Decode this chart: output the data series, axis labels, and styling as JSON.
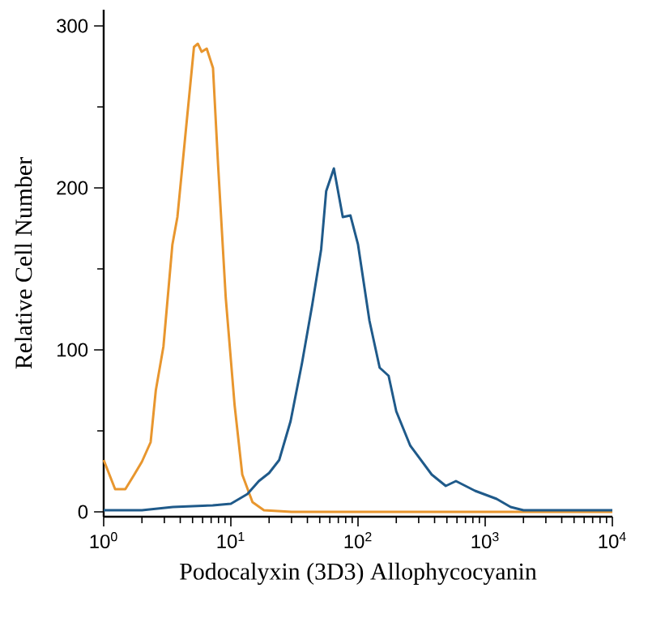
{
  "chart_data": {
    "type": "line",
    "xlabel": "Podocalyxin (3D3) Allophycocyanin",
    "ylabel": "Relative Cell Number",
    "log": "x",
    "grid": false,
    "marker": "none",
    "line_style": "solid",
    "xlim": [
      1,
      10000
    ],
    "ylim": [
      -3,
      310
    ],
    "xticks": [
      {
        "value": 1,
        "label": "10$^{0}$"
      },
      {
        "value": 10,
        "label": "10$^{1}$"
      },
      {
        "value": 100,
        "label": "10$^{2}$"
      },
      {
        "value": 1000,
        "label": "10$^{3}$"
      },
      {
        "value": 10000,
        "label": "10$^{4}$"
      },
      {
        "value": 2,
        "label": null
      },
      {
        "value": 3,
        "label": null
      },
      {
        "value": 4,
        "label": null
      },
      {
        "value": 5,
        "label": null
      },
      {
        "value": 6,
        "label": null
      },
      {
        "value": 7,
        "label": null
      },
      {
        "value": 8,
        "label": null
      },
      {
        "value": 9,
        "label": null
      },
      {
        "value": 20,
        "label": null
      },
      {
        "value": 30,
        "label": null
      },
      {
        "value": 40,
        "label": null
      },
      {
        "value": 50,
        "label": null
      },
      {
        "value": 60,
        "label": null
      },
      {
        "value": 70,
        "label": null
      },
      {
        "value": 80,
        "label": null
      },
      {
        "value": 90,
        "label": null
      },
      {
        "value": 200,
        "label": null
      },
      {
        "value": 300,
        "label": null
      },
      {
        "value": 400,
        "label": null
      },
      {
        "value": 500,
        "label": null
      },
      {
        "value": 600,
        "label": null
      },
      {
        "value": 700,
        "label": null
      },
      {
        "value": 800,
        "label": null
      },
      {
        "value": 900,
        "label": null
      },
      {
        "value": 2000,
        "label": null
      },
      {
        "value": 3000,
        "label": null
      },
      {
        "value": 4000,
        "label": null
      },
      {
        "value": 5000,
        "label": null
      },
      {
        "value": 6000,
        "label": null
      },
      {
        "value": 7000,
        "label": null
      },
      {
        "value": 8000,
        "label": null
      },
      {
        "value": 9000,
        "label": null
      }
    ],
    "yticks": [
      0,
      100,
      200,
      300,
      {
        "value": 50,
        "label": null
      },
      {
        "value": 150,
        "label": null
      },
      {
        "value": 250,
        "label": null
      }
    ],
    "series": [
      {
        "color": "#e8962e",
        "x": [
          1.0,
          1.23,
          1.48,
          1.74,
          2.0,
          2.34,
          2.57,
          2.95,
          3.47,
          3.8,
          4.37,
          5.13,
          5.5,
          5.89,
          6.46,
          7.24,
          7.94,
          9.12,
          10.7,
          12.3,
          14.8,
          18.2,
          30,
          1000,
          10000
        ],
        "values": [
          32,
          14,
          14,
          23,
          31,
          43,
          75,
          102,
          165,
          182,
          231,
          287,
          289,
          284,
          286,
          274,
          214,
          132,
          66,
          23,
          6,
          1,
          0,
          0,
          0
        ]
      },
      {
        "color": "#1f5a8a",
        "x": [
          1,
          2,
          3.5,
          7.2,
          10,
          13.5,
          16.6,
          20,
          24,
          29.5,
          36.3,
          43.7,
          51.3,
          56.2,
          64.6,
          75.9,
          87.1,
          100,
          123,
          148,
          174,
          200,
          257,
          380,
          490,
          589,
          832,
          1230,
          1585,
          2000,
          10000
        ],
        "values": [
          1,
          1,
          3,
          4,
          5,
          11,
          19,
          24,
          32,
          56,
          92,
          128,
          162,
          198,
          212,
          182,
          183,
          165,
          118,
          89,
          84,
          62,
          41,
          23,
          16,
          19,
          13,
          8,
          3,
          1,
          1
        ]
      }
    ]
  }
}
